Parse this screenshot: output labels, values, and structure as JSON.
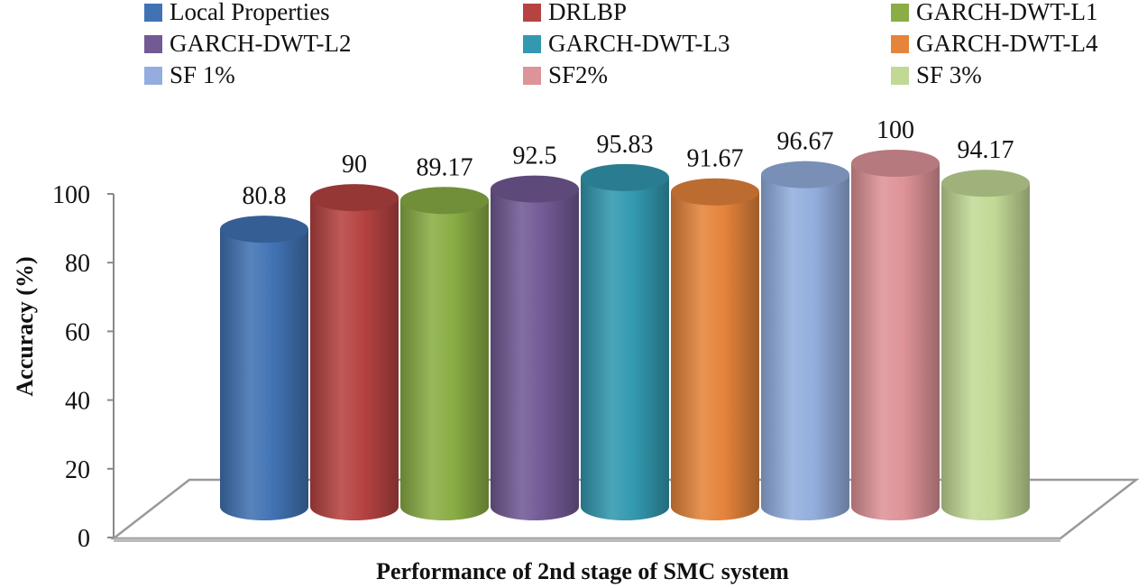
{
  "chart_data": {
    "type": "bar",
    "xlabel": "Performance of 2nd stage of SMC system",
    "ylabel": "Accuracy (%)",
    "ylim": [
      0,
      100
    ],
    "yticks": [
      "0",
      "20",
      "40",
      "60",
      "80",
      "100"
    ],
    "legend_position": "top",
    "series": [
      {
        "name": "Local Properties",
        "value": 80.8,
        "label": "80.8",
        "color": "#4173b4"
      },
      {
        "name": "DRLBP",
        "value": 90,
        "label": "90",
        "color": "#b64341"
      },
      {
        "name": "GARCH-DWT-L1",
        "value": 89.17,
        "label": "89.17",
        "color": "#8aad45"
      },
      {
        "name": "GARCH-DWT-L2",
        "value": 92.5,
        "label": "92.5",
        "color": "#725a95"
      },
      {
        "name": "GARCH-DWT-L3",
        "value": 95.83,
        "label": "95.83",
        "color": "#3399b0"
      },
      {
        "name": "GARCH-DWT-L4",
        "value": 91.67,
        "label": "91.67",
        "color": "#e5843b"
      },
      {
        "name": "SF 1%",
        "value": 96.67,
        "label": "96.67",
        "color": "#93aede"
      },
      {
        "name": "SF2%",
        "value": 100,
        "label": "100",
        "color": "#de9398"
      },
      {
        "name": "SF 3%",
        "value": 94.17,
        "label": "94.17",
        "color": "#c2d996"
      }
    ]
  }
}
